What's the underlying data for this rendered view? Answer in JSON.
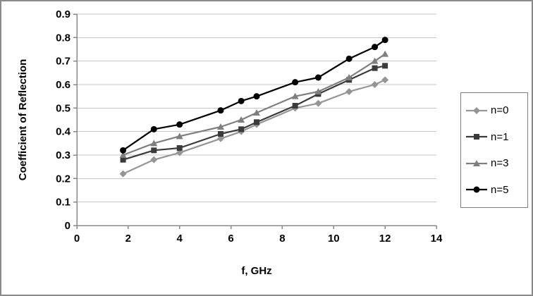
{
  "chart_data": {
    "type": "line",
    "title": "",
    "xlabel": "f, GHz",
    "ylabel": "Coefficient of Reflection",
    "xlim": [
      0,
      14
    ],
    "ylim": [
      0,
      0.9
    ],
    "grid": "horizontal",
    "legend_position": "right",
    "colors": {
      "grid": "#c6c6c6",
      "axis": "#888888",
      "frame": "#8a8a8a"
    },
    "x_ticks": [
      0,
      2,
      4,
      6,
      8,
      10,
      12,
      14
    ],
    "x_tick_labels": [
      "0",
      "2",
      "4",
      "6",
      "8",
      "10",
      "12",
      "14"
    ],
    "y_ticks": [
      0,
      0.1,
      0.2,
      0.3,
      0.4,
      0.5,
      0.6,
      0.7,
      0.8,
      0.9
    ],
    "y_tick_labels": [
      "0",
      "0.1",
      "0.2",
      "0.3",
      "0.4",
      "0.5",
      "0.6",
      "0.7",
      "0.8",
      "0.9"
    ],
    "x": [
      1.8,
      3,
      4,
      5.6,
      6.4,
      7,
      8.5,
      9.4,
      10.6,
      11.6,
      12
    ],
    "series": [
      {
        "name": "n=0",
        "marker": "diamond",
        "color": "#959595",
        "values": [
          0.22,
          0.28,
          0.31,
          0.37,
          0.4,
          0.43,
          0.5,
          0.52,
          0.57,
          0.6,
          0.62
        ]
      },
      {
        "name": "n=1",
        "marker": "square",
        "color": "#3b3b3b",
        "values": [
          0.28,
          0.32,
          0.33,
          0.39,
          0.41,
          0.44,
          0.51,
          0.56,
          0.62,
          0.67,
          0.68
        ]
      },
      {
        "name": "n=3",
        "marker": "triangle",
        "color": "#7f7f7f",
        "values": [
          0.3,
          0.35,
          0.38,
          0.42,
          0.45,
          0.48,
          0.55,
          0.57,
          0.63,
          0.7,
          0.73
        ]
      },
      {
        "name": "n=5",
        "marker": "circle",
        "color": "#000000",
        "values": [
          0.32,
          0.41,
          0.43,
          0.49,
          0.53,
          0.55,
          0.61,
          0.63,
          0.71,
          0.76,
          0.79
        ]
      }
    ]
  }
}
